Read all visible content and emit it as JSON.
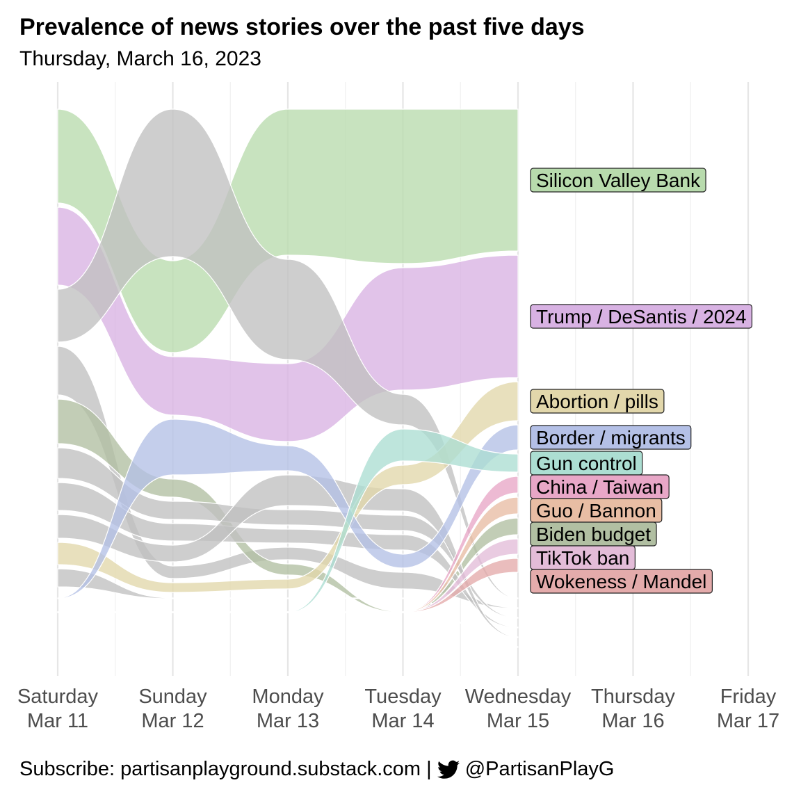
{
  "title": "Prevalence of news stories over the past five days",
  "subtitle": "Thursday, March 16, 2023",
  "footer": {
    "subscribe_text": "Subscribe: partisanplayground.substack.com |",
    "twitter_icon": "twitter-bird-icon",
    "handle": "@PartisanPlayG"
  },
  "chart_data": {
    "type": "area",
    "subtype": "ranked bump/streamgraph",
    "x_ticks": [
      {
        "day": "Saturday",
        "date": "Mar 11"
      },
      {
        "day": "Sunday",
        "date": "Mar 12"
      },
      {
        "day": "Monday",
        "date": "Mar 13"
      },
      {
        "day": "Tuesday",
        "date": "Mar 14"
      },
      {
        "day": "Wednesday",
        "date": "Mar 15"
      },
      {
        "day": "Thursday",
        "date": "Mar 16"
      },
      {
        "day": "Friday",
        "date": "Mar 17"
      }
    ],
    "grid": true,
    "legend": "direct labels at right",
    "series": [
      {
        "name": "Silicon Valley Bank",
        "color": "#b8dbad"
      },
      {
        "name": "Trump / DeSantis / 2024",
        "color": "#d8b2e3"
      },
      {
        "name": "Abortion / pills",
        "color": "#e2d7ab"
      },
      {
        "name": "Border / migrants",
        "color": "#b4c0e6"
      },
      {
        "name": "Gun control",
        "color": "#acded2"
      },
      {
        "name": "China / Taiwan",
        "color": "#e8a7c7"
      },
      {
        "name": "Guo / Bannon",
        "color": "#e8bda4"
      },
      {
        "name": "Biden budget",
        "color": "#b1bfa2"
      },
      {
        "name": "TikTok ban",
        "color": "#e3bcd8"
      },
      {
        "name": "Wokeness / Mandel",
        "color": "#e4abab"
      }
    ],
    "other_color": "#c0c0c0",
    "day_stacks": [
      [
        {
          "id": "Silicon Valley Bank",
          "v": 135
        },
        {
          "id": "Trump / DeSantis / 2024",
          "v": 112
        },
        {
          "id": "o1",
          "v": 76
        },
        {
          "id": "o2",
          "v": 70
        },
        {
          "id": "Biden budget",
          "v": 64
        },
        {
          "id": "o3",
          "v": 44
        },
        {
          "id": "o4",
          "v": 40
        },
        {
          "id": "o5",
          "v": 34
        },
        {
          "id": "Abortion / pills",
          "v": 32
        },
        {
          "id": "o6",
          "v": 26
        },
        {
          "id": "Border / migrants",
          "v": 0
        },
        {
          "id": "o7",
          "v": 0
        },
        {
          "id": "o8",
          "v": 0
        }
      ],
      [
        {
          "id": "o1",
          "v": 212
        },
        {
          "id": "Silicon Valley Bank",
          "v": 132
        },
        {
          "id": "Trump / DeSantis / 2024",
          "v": 84
        },
        {
          "id": "Border / migrants",
          "v": 80
        },
        {
          "id": "Biden budget",
          "v": 26
        },
        {
          "id": "o3",
          "v": 26
        },
        {
          "id": "o4",
          "v": 25
        },
        {
          "id": "o5",
          "v": 24
        },
        {
          "id": "o2",
          "v": 18
        },
        {
          "id": "Abortion / pills",
          "v": 14
        },
        {
          "id": "o6",
          "v": 0
        },
        {
          "id": "o7",
          "v": 0
        },
        {
          "id": "o8",
          "v": 0
        }
      ],
      [
        {
          "id": "Silicon Valley Bank",
          "v": 210
        },
        {
          "id": "o1",
          "v": 144
        },
        {
          "id": "Trump / DeSantis / 2024",
          "v": 112
        },
        {
          "id": "Border / migrants",
          "v": 36
        },
        {
          "id": "o5",
          "v": 44
        },
        {
          "id": "o3",
          "v": 22
        },
        {
          "id": "o4",
          "v": 20
        },
        {
          "id": "o2",
          "v": 18
        },
        {
          "id": "Biden budget",
          "v": 16
        },
        {
          "id": "Abortion / pills",
          "v": 14
        },
        {
          "id": "o6",
          "v": 0
        },
        {
          "id": "o7",
          "v": 0
        },
        {
          "id": "o8",
          "v": 0
        }
      ],
      [
        {
          "id": "Silicon Valley Bank",
          "v": 222
        },
        {
          "id": "Trump / DeSantis / 2024",
          "v": 176
        },
        {
          "id": "o1",
          "v": 44
        },
        {
          "id": "Gun control",
          "v": 46
        },
        {
          "id": "Abortion / pills",
          "v": 28
        },
        {
          "id": "o5",
          "v": 32
        },
        {
          "id": "o3",
          "v": 22
        },
        {
          "id": "o4",
          "v": 22
        },
        {
          "id": "Border / migrants",
          "v": 20
        },
        {
          "id": "o2",
          "v": 24
        },
        {
          "id": "o6",
          "v": 0
        },
        {
          "id": "o7",
          "v": 0
        },
        {
          "id": "o8",
          "v": 0
        }
      ],
      [
        {
          "id": "Silicon Valley Bank",
          "v": 204
        },
        {
          "id": "Trump / DeSantis / 2024",
          "v": 176
        },
        {
          "id": "Abortion / pills",
          "v": 56
        },
        {
          "id": "Border / migrants",
          "v": 36
        },
        {
          "id": "Gun control",
          "v": 26
        },
        {
          "id": "China / Taiwan",
          "v": 24
        },
        {
          "id": "Guo / Bannon",
          "v": 24
        },
        {
          "id": "Biden budget",
          "v": 24
        },
        {
          "id": "TikTok ban",
          "v": 22
        },
        {
          "id": "Wokeness / Mandel",
          "v": 20
        },
        {
          "id": "o1",
          "v": 0
        },
        {
          "id": "o2",
          "v": 0
        },
        {
          "id": "o3",
          "v": 0
        },
        {
          "id": "o4",
          "v": 0
        },
        {
          "id": "o5",
          "v": 0
        },
        {
          "id": "o6",
          "v": 0
        }
      ]
    ]
  }
}
